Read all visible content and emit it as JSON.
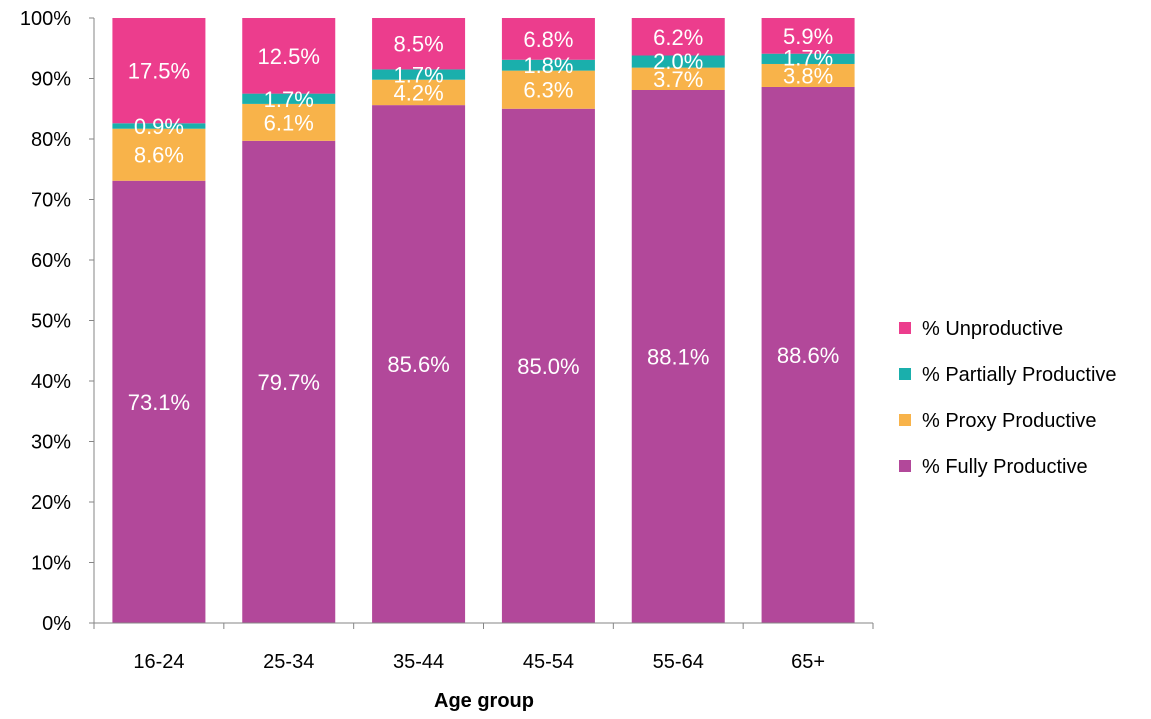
{
  "chart_data": {
    "type": "bar",
    "stacked": true,
    "categories": [
      "16-24",
      "25-34",
      "35-44",
      "45-54",
      "55-64",
      "65+"
    ],
    "series": [
      {
        "name": "% Fully Productive",
        "color": "#B2489A",
        "values": [
          73.1,
          79.7,
          85.6,
          85.0,
          88.1,
          88.6
        ]
      },
      {
        "name": "% Proxy Productive",
        "color": "#F8B34A",
        "values": [
          8.6,
          6.1,
          4.2,
          6.3,
          3.7,
          3.8
        ]
      },
      {
        "name": "% Partially Productive",
        "color": "#1AAFAC",
        "values": [
          0.9,
          1.7,
          1.7,
          1.8,
          2.0,
          1.7
        ]
      },
      {
        "name": "% Unproductive",
        "color": "#EC3D8D",
        "values": [
          17.5,
          12.5,
          8.5,
          6.8,
          6.2,
          5.9
        ]
      }
    ],
    "title": "",
    "xlabel": "Age group",
    "ylabel": "",
    "ylim": [
      0,
      100
    ],
    "yticks": [
      "0%",
      "10%",
      "20%",
      "30%",
      "40%",
      "50%",
      "60%",
      "70%",
      "80%",
      "90%",
      "100%"
    ],
    "legend_order": [
      "% Unproductive",
      "% Partially Productive",
      "% Proxy Productive",
      "% Fully Productive"
    ],
    "legend_position": "right",
    "grid": false
  }
}
